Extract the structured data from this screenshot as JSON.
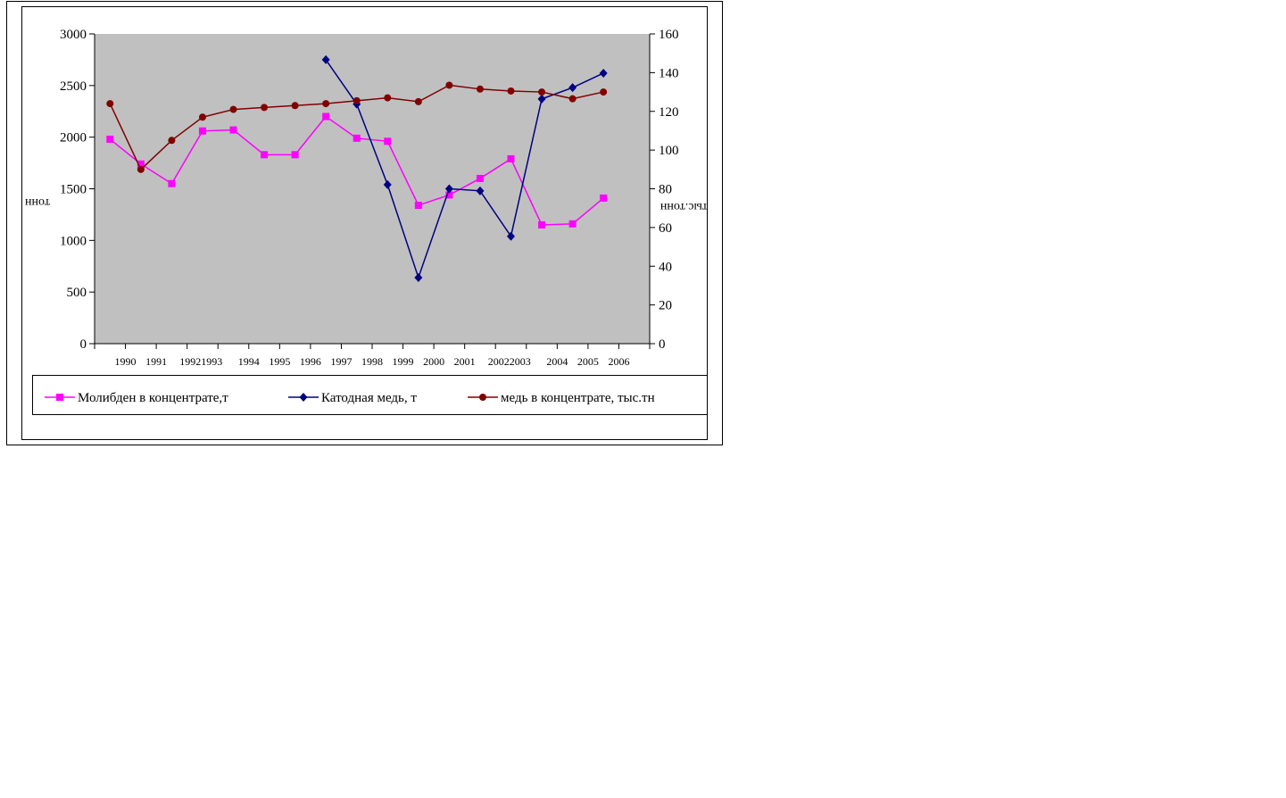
{
  "chart_data": {
    "type": "line",
    "x": [
      "1990",
      "1991",
      "1992",
      "1993",
      "1994",
      "1995",
      "1996",
      "1997",
      "1998",
      "1999",
      "2000",
      "2001",
      "2002",
      "2003",
      "2004",
      "2005",
      "2006"
    ],
    "x_tick_labels": [
      "1990",
      "1991",
      "19921993",
      "1994",
      "1995",
      "1996",
      "1997",
      "1998",
      "1999",
      "2000",
      "2001",
      "20022003",
      "2004",
      "2005",
      "2006"
    ],
    "y_left": {
      "label": "тонн",
      "range": [
        0,
        3000
      ],
      "ticks": [
        "0",
        "500",
        "1000",
        "1500",
        "2000",
        "2500",
        "3000"
      ]
    },
    "y_right": {
      "label": "тыс.тонн",
      "range": [
        0,
        160
      ],
      "ticks": [
        "0",
        "20",
        "40",
        "60",
        "80",
        "100",
        "120",
        "140",
        "160"
      ]
    },
    "plot_background": "#c0c0c0",
    "grid": false,
    "legend_position": "bottom",
    "series": [
      {
        "name": "Молибден в концентрате,т",
        "axis": "left",
        "color": "#ff00ff",
        "marker": "square",
        "values": [
          1980,
          1740,
          1550,
          2060,
          2070,
          1830,
          1830,
          2200,
          1990,
          1960,
          1340,
          1440,
          1600,
          1790,
          1150,
          1160,
          1410
        ]
      },
      {
        "name": "Катодная медь, т",
        "axis": "left",
        "color": "#000080",
        "marker": "diamond",
        "values": [
          null,
          null,
          null,
          null,
          null,
          null,
          null,
          2750,
          2320,
          1540,
          640,
          1500,
          1480,
          1040,
          2370,
          2480,
          2620
        ]
      },
      {
        "name": "медь в концентрате, тыс.тн",
        "axis": "right",
        "color": "#800000",
        "marker": "circle",
        "values": [
          124,
          90,
          105,
          117,
          121,
          122,
          123,
          124,
          125.5,
          127,
          125,
          133.5,
          131.5,
          130.5,
          130,
          126.5,
          130
        ]
      }
    ]
  }
}
